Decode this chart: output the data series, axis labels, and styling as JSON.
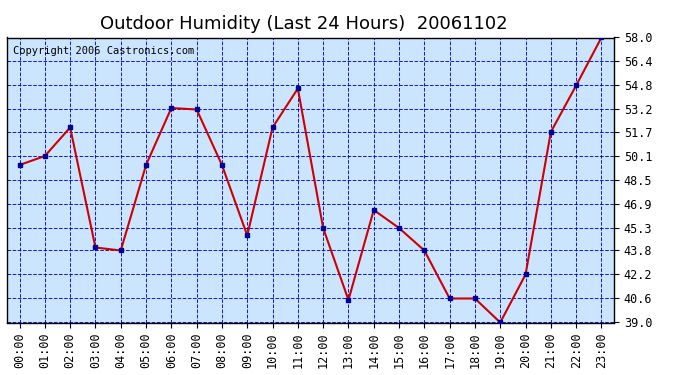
{
  "title": "Outdoor Humidity (Last 24 Hours)  20061102",
  "copyright": "Copyright 2006 Castronics.com",
  "x_labels": [
    "00:00",
    "01:00",
    "02:00",
    "03:00",
    "04:00",
    "05:00",
    "06:00",
    "07:00",
    "08:00",
    "09:00",
    "10:00",
    "11:00",
    "12:00",
    "13:00",
    "14:00",
    "15:00",
    "16:00",
    "17:00",
    "18:00",
    "19:00",
    "20:00",
    "21:00",
    "22:00",
    "23:00"
  ],
  "y_values": [
    49.5,
    50.1,
    52.0,
    44.0,
    43.8,
    49.5,
    53.3,
    53.2,
    49.5,
    44.8,
    52.0,
    54.6,
    45.3,
    40.5,
    46.5,
    45.3,
    43.8,
    40.6,
    40.6,
    39.0,
    42.2,
    51.7,
    54.8,
    58.0
  ],
  "ylim_min": 39.0,
  "ylim_max": 58.0,
  "yticks": [
    39.0,
    40.6,
    42.2,
    43.8,
    45.3,
    46.9,
    48.5,
    50.1,
    51.7,
    53.2,
    54.8,
    56.4,
    58.0
  ],
  "line_color": "#cc0000",
  "marker_color": "#000099",
  "bg_color": "#cce5ff",
  "plot_area_bg": "#cce5ff",
  "outer_bg": "#ffffff",
  "grid_color": "#0000cc",
  "title_color": "#000000",
  "copyright_color": "#000000",
  "title_fontsize": 13,
  "tick_fontsize": 8.5,
  "copyright_fontsize": 7.5
}
